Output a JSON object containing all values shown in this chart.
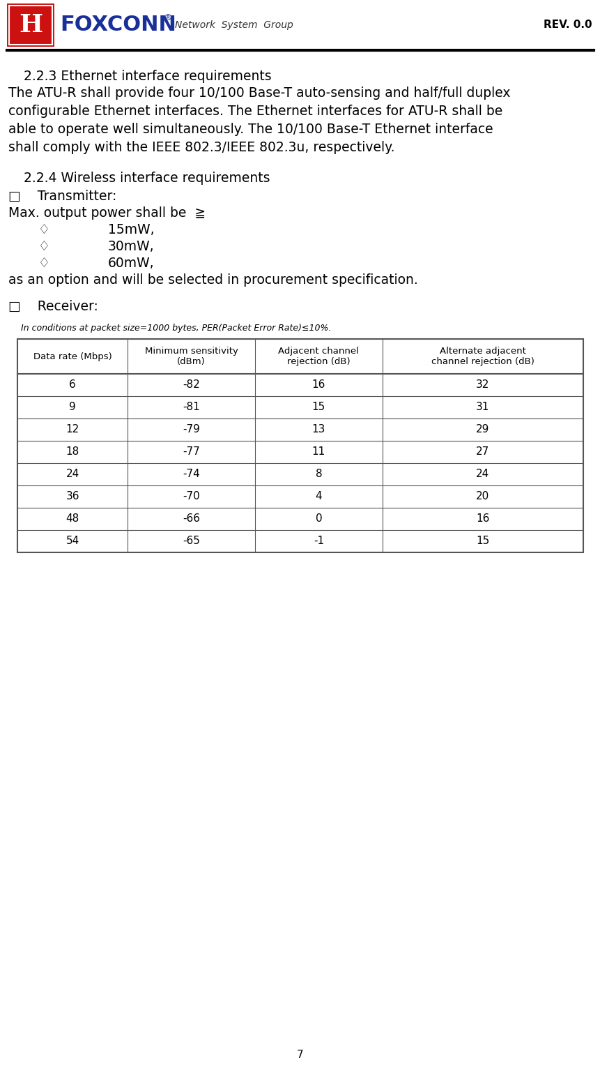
{
  "page_width": 8.62,
  "page_height": 15.47,
  "background_color": "#ffffff",
  "header_line_color": "#000000",
  "rev_text": "REV. 0.0",
  "foxconn_blue": "#1a3099",
  "foxconn_red": "#cc1111",
  "network_text": "Network  System  Group",
  "section_223_title": "  2.2.3 Ethernet interface requirements",
  "section_223_body_lines": [
    "The ATU-R shall provide four 10/100 Base-T auto-sensing and half/full duplex",
    "configurable Ethernet interfaces. The Ethernet interfaces for ATU-R shall be",
    "able to operate well simultaneously. The 10/100 Base-T Ethernet interface",
    "shall comply with the IEEE 802.3/IEEE 802.3u, respectively."
  ],
  "section_224_title": "  2.2.4 Wireless interface requirements",
  "transmitter_label": "□    Transmitter:",
  "max_output_line": "Max. output power shall be  ≧",
  "bullet_15": "15mW,",
  "bullet_30": "30mW,",
  "bullet_60": "60mW,",
  "procurement_text": "as an option and will be selected in procurement specification.",
  "receiver_label": "□    Receiver:",
  "table_note": "In conditions at packet size=1000 bytes, PER(Packet Error Rate)≤10%.",
  "table_headers": [
    "Data rate (Mbps)",
    "Minimum sensitivity\n(dBm)",
    "Adjacent channel\nrejection (dB)",
    "Alternate adjacent\nchannel rejection (dB)"
  ],
  "table_data": [
    [
      "6",
      "-82",
      "16",
      "32"
    ],
    [
      "9",
      "-81",
      "15",
      "31"
    ],
    [
      "12",
      "-79",
      "13",
      "29"
    ],
    [
      "18",
      "-77",
      "11",
      "27"
    ],
    [
      "24",
      "-74",
      "8",
      "24"
    ],
    [
      "36",
      "-70",
      "4",
      "20"
    ],
    [
      "48",
      "-66",
      "0",
      "16"
    ],
    [
      "54",
      "-65",
      "-1",
      "15"
    ]
  ],
  "page_number": "7",
  "text_color": "#000000",
  "table_border_color": "#555555",
  "diamond_symbol": "♢"
}
